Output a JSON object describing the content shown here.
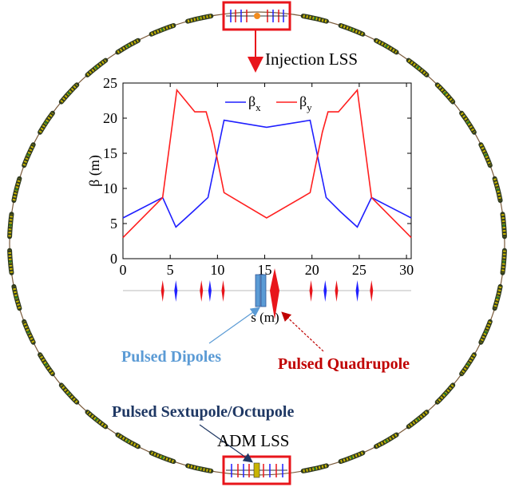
{
  "labels": {
    "injection": "Injection LSS",
    "adm": "ADM LSS",
    "pulsed_dipoles": "Pulsed Dipoles",
    "pulsed_quadrupole": "Pulsed Quadrupole",
    "pulsed_sextupole": "Pulsed Sextupole/Octupole"
  },
  "colors": {
    "beta_x": "#1f1fff",
    "beta_y": "#ff1f1f",
    "dipole": "#5b9bd5",
    "quadrupole": "#e8151b",
    "ring_outline": "#7a5a3a",
    "ring_magnets": "#c8b400",
    "highlight_box": "#e8151b",
    "sext_arrow": "#1f3864"
  },
  "chart_data": {
    "type": "line",
    "xlabel": "s (m)",
    "ylabel": "β (m)",
    "xlim": [
      0,
      30.5
    ],
    "ylim": [
      0,
      25
    ],
    "xticks": [
      0,
      5,
      10,
      15,
      20,
      25,
      30
    ],
    "yticks": [
      0,
      5,
      10,
      15,
      20,
      25
    ],
    "legend_position": "top-center",
    "series": [
      {
        "name": "βx",
        "label_main": "β",
        "label_sub": "x",
        "color": "#1f1fff",
        "x": [
          0,
          4.2,
          5.6,
          7.4,
          9.0,
          10.7,
          15.2,
          19.8,
          21.5,
          23.0,
          24.8,
          26.3,
          30.5
        ],
        "y": [
          5.8,
          8.7,
          4.5,
          6.7,
          8.7,
          19.7,
          18.7,
          19.7,
          8.7,
          6.7,
          4.5,
          8.7,
          5.8
        ]
      },
      {
        "name": "βy",
        "label_main": "β",
        "label_sub": "y",
        "color": "#ff1f1f",
        "x": [
          0,
          4.2,
          5.7,
          7.6,
          8.8,
          9.4,
          10.7,
          15.2,
          19.8,
          21.1,
          21.7,
          22.8,
          24.8,
          26.3,
          30.5
        ],
        "y": [
          3.0,
          8.7,
          24.0,
          20.9,
          20.9,
          18.0,
          9.4,
          5.8,
          9.4,
          18.0,
          20.9,
          20.9,
          24.0,
          8.7,
          3.0
        ]
      }
    ]
  }
}
